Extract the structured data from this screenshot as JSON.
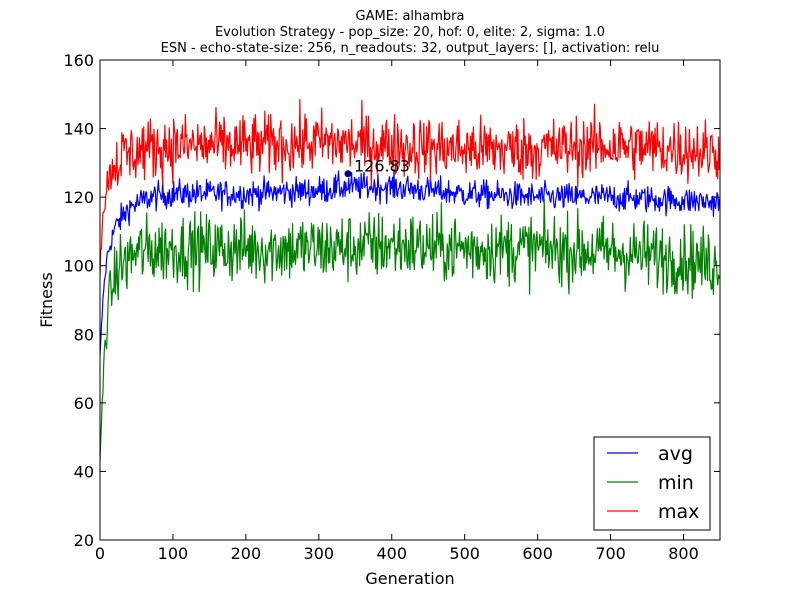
{
  "chart_data": {
    "type": "line",
    "title_lines": [
      "GAME: alhambra",
      "Evolution Strategy - pop_size: 20, hof: 0, elite: 2, sigma: 1.0",
      "ESN - echo-state-size: 256, n_readouts: 32, output_layers: [], activation: relu"
    ],
    "xlabel": "Generation",
    "ylabel": "Fitness",
    "xlim": [
      0,
      850
    ],
    "ylim": [
      20,
      160
    ],
    "x_ticks": [
      0,
      100,
      200,
      300,
      400,
      500,
      600,
      700,
      800
    ],
    "y_ticks": [
      20,
      40,
      60,
      80,
      100,
      120,
      140,
      160
    ],
    "grid": false,
    "legend_position": "lower-right",
    "num_points": 850,
    "series": [
      {
        "name": "avg",
        "color": "#0000ff",
        "anchors": [
          [
            0,
            73
          ],
          [
            2,
            82
          ],
          [
            5,
            93
          ],
          [
            10,
            103
          ],
          [
            20,
            111
          ],
          [
            40,
            117
          ],
          [
            70,
            120
          ],
          [
            100,
            121
          ],
          [
            200,
            121
          ],
          [
            300,
            122
          ],
          [
            340,
            123
          ],
          [
            400,
            123
          ],
          [
            450,
            122
          ],
          [
            500,
            121
          ],
          [
            600,
            120
          ],
          [
            700,
            120
          ],
          [
            800,
            119
          ],
          [
            850,
            118.5
          ]
        ],
        "noise": 2.0
      },
      {
        "name": "min",
        "color": "#008000",
        "anchors": [
          [
            0,
            43
          ],
          [
            3,
            58
          ],
          [
            6,
            75
          ],
          [
            12,
            90
          ],
          [
            25,
            99
          ],
          [
            50,
            104
          ],
          [
            100,
            105
          ],
          [
            200,
            105
          ],
          [
            300,
            105
          ],
          [
            400,
            106
          ],
          [
            500,
            105
          ],
          [
            600,
            105
          ],
          [
            700,
            104
          ],
          [
            800,
            102
          ],
          [
            850,
            100
          ]
        ],
        "noise": 5.0
      },
      {
        "name": "max",
        "color": "#ff0000",
        "anchors": [
          [
            0,
            100
          ],
          [
            3,
            112
          ],
          [
            8,
            122
          ],
          [
            15,
            128
          ],
          [
            30,
            132
          ],
          [
            60,
            134
          ],
          [
            100,
            135
          ],
          [
            200,
            135
          ],
          [
            300,
            136
          ],
          [
            400,
            135
          ],
          [
            500,
            134
          ],
          [
            600,
            134
          ],
          [
            700,
            135
          ],
          [
            800,
            134
          ],
          [
            850,
            133
          ]
        ],
        "noise": 4.5
      }
    ],
    "annotation": {
      "x": 340,
      "y": 126.83,
      "label": "126.83"
    }
  }
}
